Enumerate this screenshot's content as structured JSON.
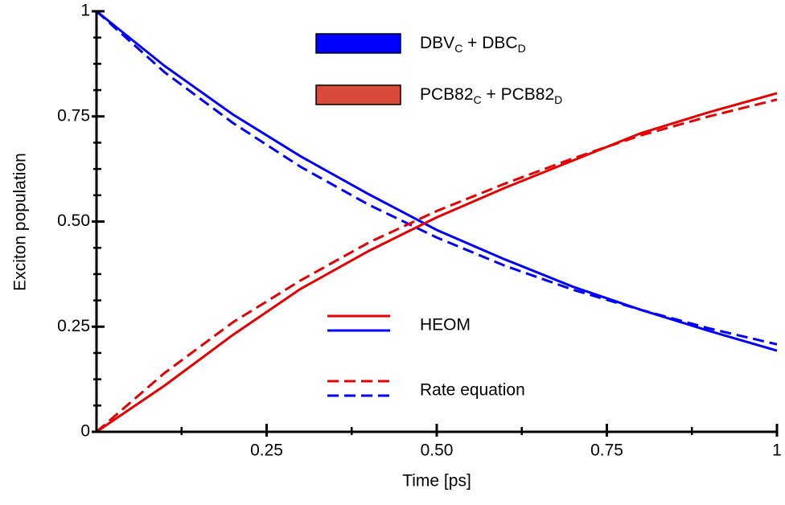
{
  "chart_data": {
    "type": "line",
    "xlabel": "Time [ps]",
    "ylabel": "Exciton population",
    "xlim": [
      0,
      1
    ],
    "ylim": [
      0,
      1
    ],
    "xticks": [
      0.25,
      {
        "value": 0.5,
        "label": "0.50"
      },
      0.75,
      1
    ],
    "yticks": [
      0,
      0.25,
      {
        "value": 0.5,
        "label": "0.50"
      },
      0.75,
      1
    ],
    "species": [
      {
        "name": [
          "DBV",
          "C",
          " + DBC",
          "D"
        ],
        "color": "#0000ff"
      },
      {
        "name": [
          "PCB82",
          "C",
          " + PCB82",
          "D"
        ],
        "color": "#d94a3a"
      }
    ],
    "methods": [
      {
        "name": "HEOM",
        "dashed": false
      },
      {
        "name": "Rate equation",
        "dashed": true
      }
    ],
    "x": [
      0,
      0.1,
      0.2,
      0.3,
      0.4,
      0.5,
      0.6,
      0.7,
      0.8,
      0.9,
      1
    ],
    "series": [
      {
        "species": 0,
        "method": 0,
        "color": "#0000ff",
        "values": [
          1,
          0.87,
          0.755,
          0.655,
          0.565,
          0.48,
          0.41,
          0.345,
          0.29,
          0.24,
          0.193
        ]
      },
      {
        "species": 0,
        "method": 1,
        "color": "#0000ff",
        "values": [
          1,
          0.855,
          0.735,
          0.63,
          0.54,
          0.462,
          0.395,
          0.338,
          0.29,
          0.246,
          0.208
        ]
      },
      {
        "species": 1,
        "method": 0,
        "color": "#e60000",
        "values": [
          0,
          0.11,
          0.23,
          0.34,
          0.43,
          0.51,
          0.58,
          0.645,
          0.71,
          0.76,
          0.805
        ]
      },
      {
        "species": 1,
        "method": 1,
        "color": "#e60000",
        "values": [
          0,
          0.14,
          0.26,
          0.36,
          0.45,
          0.525,
          0.59,
          0.65,
          0.705,
          0.75,
          0.79
        ]
      }
    ]
  }
}
